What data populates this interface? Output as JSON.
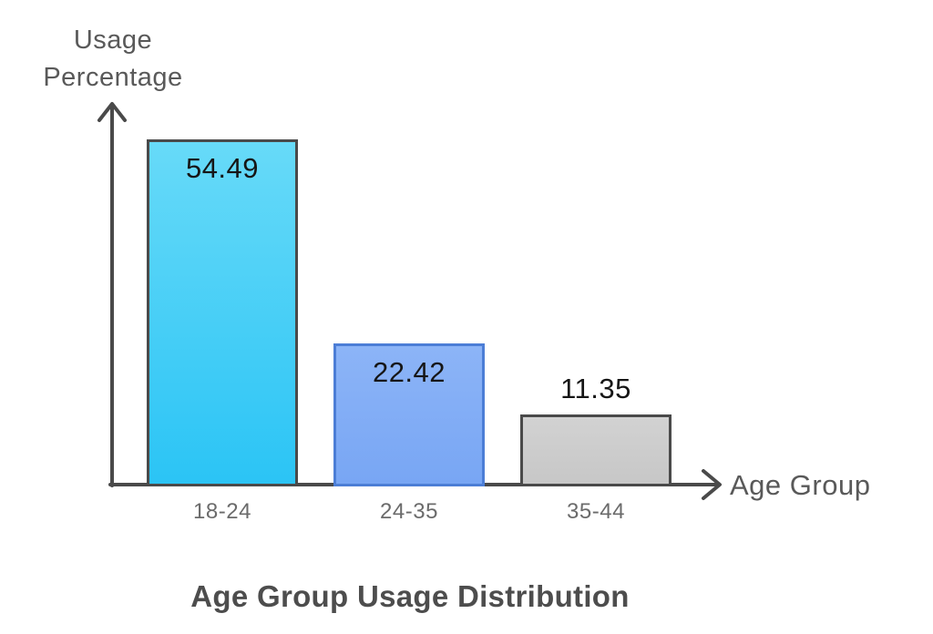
{
  "chart_data": {
    "type": "bar",
    "title": "Age Group Usage Distribution",
    "xlabel": "Age Group",
    "ylabel": "Usage Percentage",
    "categories": [
      "18-24",
      "24-35",
      "35-44"
    ],
    "values": [
      54.49,
      22.42,
      11.35
    ],
    "value_labels": [
      "54.49",
      "22.42",
      "11.35"
    ],
    "ylim": [
      0,
      60
    ],
    "grid": false,
    "legend": false,
    "axis_color": "#4a4a4a",
    "bar_styles": [
      {
        "fill_top": "#67daf8",
        "fill_bottom": "#2bc4f5",
        "border": "#4a4a4a"
      },
      {
        "fill_top": "#8cb4f7",
        "fill_bottom": "#78a6f4",
        "border": "#4c7ed6"
      },
      {
        "fill_top": "#d2d2d2",
        "fill_bottom": "#c7c7c7",
        "border": "#4a4a4a"
      }
    ]
  }
}
